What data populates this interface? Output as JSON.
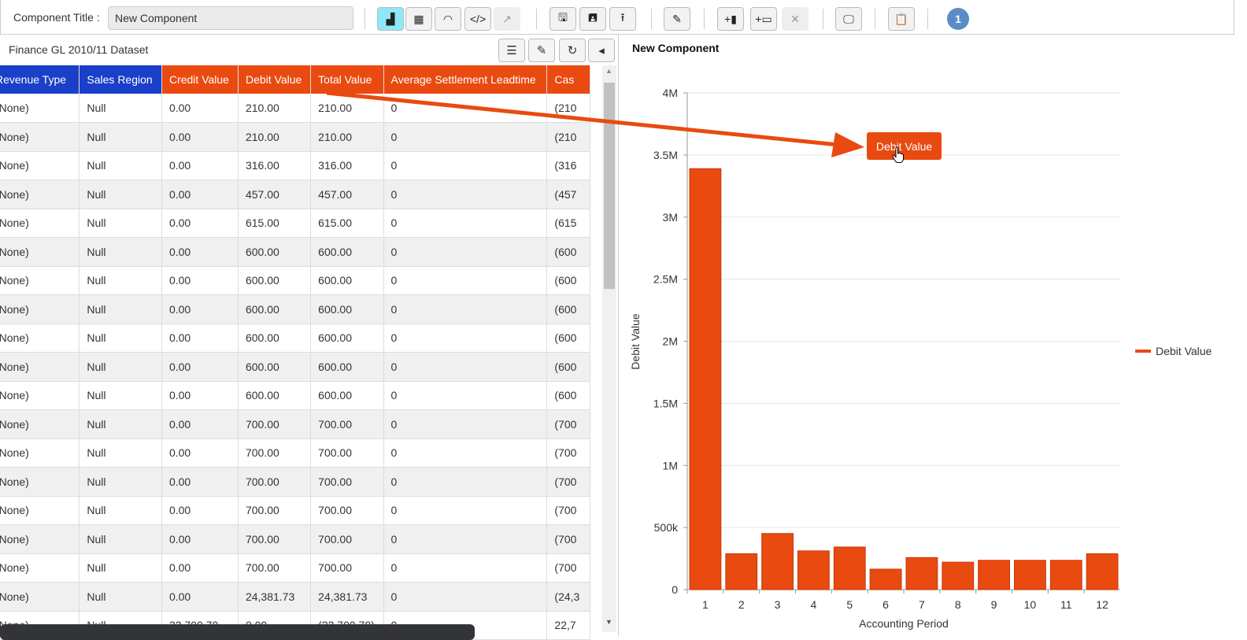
{
  "toolbar": {
    "title_label": "Component Title :",
    "title_value": "New Component",
    "notification_count": "1"
  },
  "dataset": {
    "title": "Finance GL 2010/11 Dataset"
  },
  "table": {
    "columns": [
      {
        "label": "Revenue Type",
        "type": "dimension"
      },
      {
        "label": "Sales Region",
        "type": "dimension"
      },
      {
        "label": "Credit Value",
        "type": "measure"
      },
      {
        "label": "Debit Value",
        "type": "measure"
      },
      {
        "label": "Total Value",
        "type": "measure"
      },
      {
        "label": "Average Settlement Leadtime",
        "type": "measure"
      },
      {
        "label": "Cas",
        "type": "measure"
      }
    ],
    "rows": [
      [
        "(None)",
        "Null",
        "0.00",
        "210.00",
        "210.00",
        "0",
        "(210"
      ],
      [
        "(None)",
        "Null",
        "0.00",
        "210.00",
        "210.00",
        "0",
        "(210"
      ],
      [
        "(None)",
        "Null",
        "0.00",
        "316.00",
        "316.00",
        "0",
        "(316"
      ],
      [
        "(None)",
        "Null",
        "0.00",
        "457.00",
        "457.00",
        "0",
        "(457"
      ],
      [
        "(None)",
        "Null",
        "0.00",
        "615.00",
        "615.00",
        "0",
        "(615"
      ],
      [
        "(None)",
        "Null",
        "0.00",
        "600.00",
        "600.00",
        "0",
        "(600"
      ],
      [
        "(None)",
        "Null",
        "0.00",
        "600.00",
        "600.00",
        "0",
        "(600"
      ],
      [
        "(None)",
        "Null",
        "0.00",
        "600.00",
        "600.00",
        "0",
        "(600"
      ],
      [
        "(None)",
        "Null",
        "0.00",
        "600.00",
        "600.00",
        "0",
        "(600"
      ],
      [
        "(None)",
        "Null",
        "0.00",
        "600.00",
        "600.00",
        "0",
        "(600"
      ],
      [
        "(None)",
        "Null",
        "0.00",
        "600.00",
        "600.00",
        "0",
        "(600"
      ],
      [
        "(None)",
        "Null",
        "0.00",
        "700.00",
        "700.00",
        "0",
        "(700"
      ],
      [
        "(None)",
        "Null",
        "0.00",
        "700.00",
        "700.00",
        "0",
        "(700"
      ],
      [
        "(None)",
        "Null",
        "0.00",
        "700.00",
        "700.00",
        "0",
        "(700"
      ],
      [
        "(None)",
        "Null",
        "0.00",
        "700.00",
        "700.00",
        "0",
        "(700"
      ],
      [
        "(None)",
        "Null",
        "0.00",
        "700.00",
        "700.00",
        "0",
        "(700"
      ],
      [
        "(None)",
        "Null",
        "0.00",
        "700.00",
        "700.00",
        "0",
        "(700"
      ],
      [
        "(None)",
        "Null",
        "0.00",
        "24,381.73",
        "24,381.73",
        "0",
        "(24,3"
      ],
      [
        "(None)",
        "Null",
        "22,700.70",
        "0.00",
        "(22,700.70)",
        "0",
        "22,7"
      ]
    ]
  },
  "drag_label": "Debit Value",
  "colors": {
    "accent": "#e94a10",
    "dimension": "#1a3fc8",
    "active_button": "#8ee8f8"
  },
  "chart_data": {
    "type": "bar",
    "title": "New Component",
    "xlabel": "Accounting Period",
    "ylabel": "Debit Value",
    "categories": [
      "1",
      "2",
      "3",
      "4",
      "5",
      "6",
      "7",
      "8",
      "9",
      "10",
      "11",
      "12"
    ],
    "series": [
      {
        "name": "Debit Value",
        "values": [
          3390000,
          289000,
          452000,
          312000,
          343000,
          165000,
          258000,
          221000,
          236000,
          236000,
          236000,
          289000
        ],
        "color": "#e94a10"
      }
    ],
    "ylim": [
      0,
      4000000
    ],
    "yticks": [
      {
        "v": 0,
        "label": "0"
      },
      {
        "v": 500000,
        "label": "500k"
      },
      {
        "v": 1000000,
        "label": "1M"
      },
      {
        "v": 1500000,
        "label": "1.5M"
      },
      {
        "v": 2000000,
        "label": "2M"
      },
      {
        "v": 2500000,
        "label": "2.5M"
      },
      {
        "v": 3000000,
        "label": "3M"
      },
      {
        "v": 3500000,
        "label": "3.5M"
      },
      {
        "v": 4000000,
        "label": "4M"
      }
    ],
    "grid": true,
    "legend": "right"
  }
}
